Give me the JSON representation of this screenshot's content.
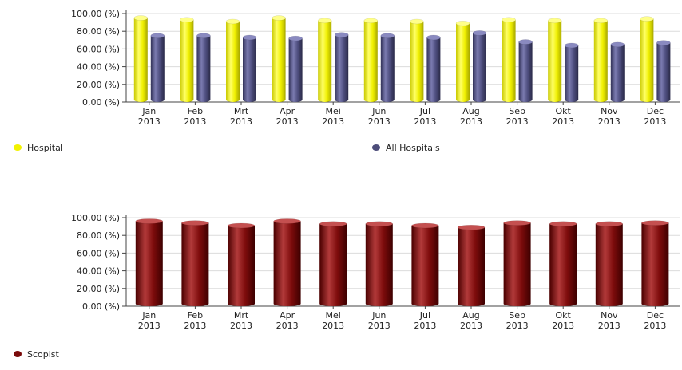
{
  "chart_data": [
    {
      "type": "bar",
      "categories": [
        "Jan 2013",
        "Feb 2013",
        "Mrt 2013",
        "Apr 2013",
        "Mei 2013",
        "Jun 2013",
        "Jul 2013",
        "Aug 2013",
        "Sep 2013",
        "Okt 2013",
        "Nov 2013",
        "Dec 2013"
      ],
      "series": [
        {
          "name": "Hospital",
          "values": [
            95,
            93,
            91,
            95,
            92,
            92,
            91,
            89,
            93,
            92,
            92,
            94
          ],
          "color": "#f2f200"
        },
        {
          "name": "All Hospitals",
          "values": [
            75,
            75,
            73,
            72,
            76,
            75,
            73,
            78,
            68,
            64,
            65,
            67
          ],
          "color": "#4d4d7a"
        }
      ],
      "yticks": [
        "0,00 (%)",
        "20,00 (%)",
        "40,00 (%)",
        "60,00 (%)",
        "80,00 (%)",
        "100,00 (%)"
      ],
      "ylim": [
        0,
        100
      ],
      "grid": true,
      "legend_position": "bottom"
    },
    {
      "type": "bar",
      "categories": [
        "Jan 2013",
        "Feb 2013",
        "Mrt 2013",
        "Apr 2013",
        "Mei 2013",
        "Jun 2013",
        "Jul 2013",
        "Aug 2013",
        "Sep 2013",
        "Okt 2013",
        "Nov 2013",
        "Dec 2013"
      ],
      "series": [
        {
          "name": "Scopist",
          "values": [
            96,
            94,
            91,
            96,
            93,
            93,
            91,
            89,
            94,
            93,
            93,
            94
          ],
          "color": "#7a0a0a"
        }
      ],
      "yticks": [
        "0,00 (%)",
        "20,00 (%)",
        "40,00 (%)",
        "60,00 (%)",
        "80,00 (%)",
        "100,00 (%)"
      ],
      "ylim": [
        0,
        100
      ],
      "grid": true,
      "legend_position": "bottom-left"
    }
  ]
}
